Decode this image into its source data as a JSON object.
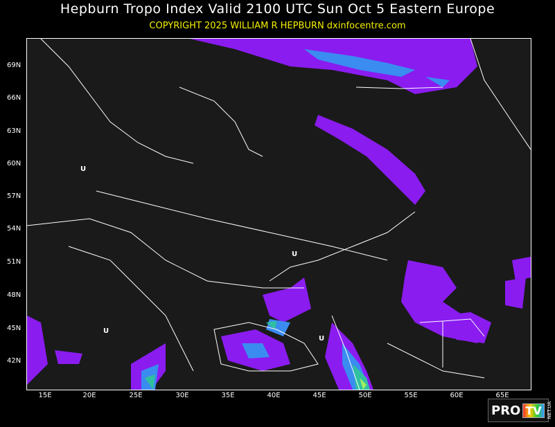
{
  "header": {
    "title": "Hepburn Tropo Index Valid 2100 UTC Sun Oct 5 Eastern Europe",
    "copyright": "COPYRIGHT 2025   WILLIAM R HEPBURN   dxinfocentre.com"
  },
  "map": {
    "lat_labels": [
      "69N",
      "66N",
      "63N",
      "60N",
      "57N",
      "54N",
      "51N",
      "48N",
      "45N",
      "42N"
    ],
    "lon_labels": [
      "15E",
      "20E",
      "25E",
      "30E",
      "35E",
      "40E",
      "45E",
      "50E",
      "55E",
      "60E",
      "65E"
    ],
    "markers": [
      "U",
      "U",
      "U",
      "U"
    ],
    "colors": {
      "background": "#1a1a1a",
      "level1": "#8a1cf0",
      "level2": "#3a8cf0",
      "level3": "#30c0a0",
      "level4": "#a0f060",
      "borders": "#ffffff"
    }
  },
  "logo": {
    "text": "PRO TV NET.UA"
  }
}
